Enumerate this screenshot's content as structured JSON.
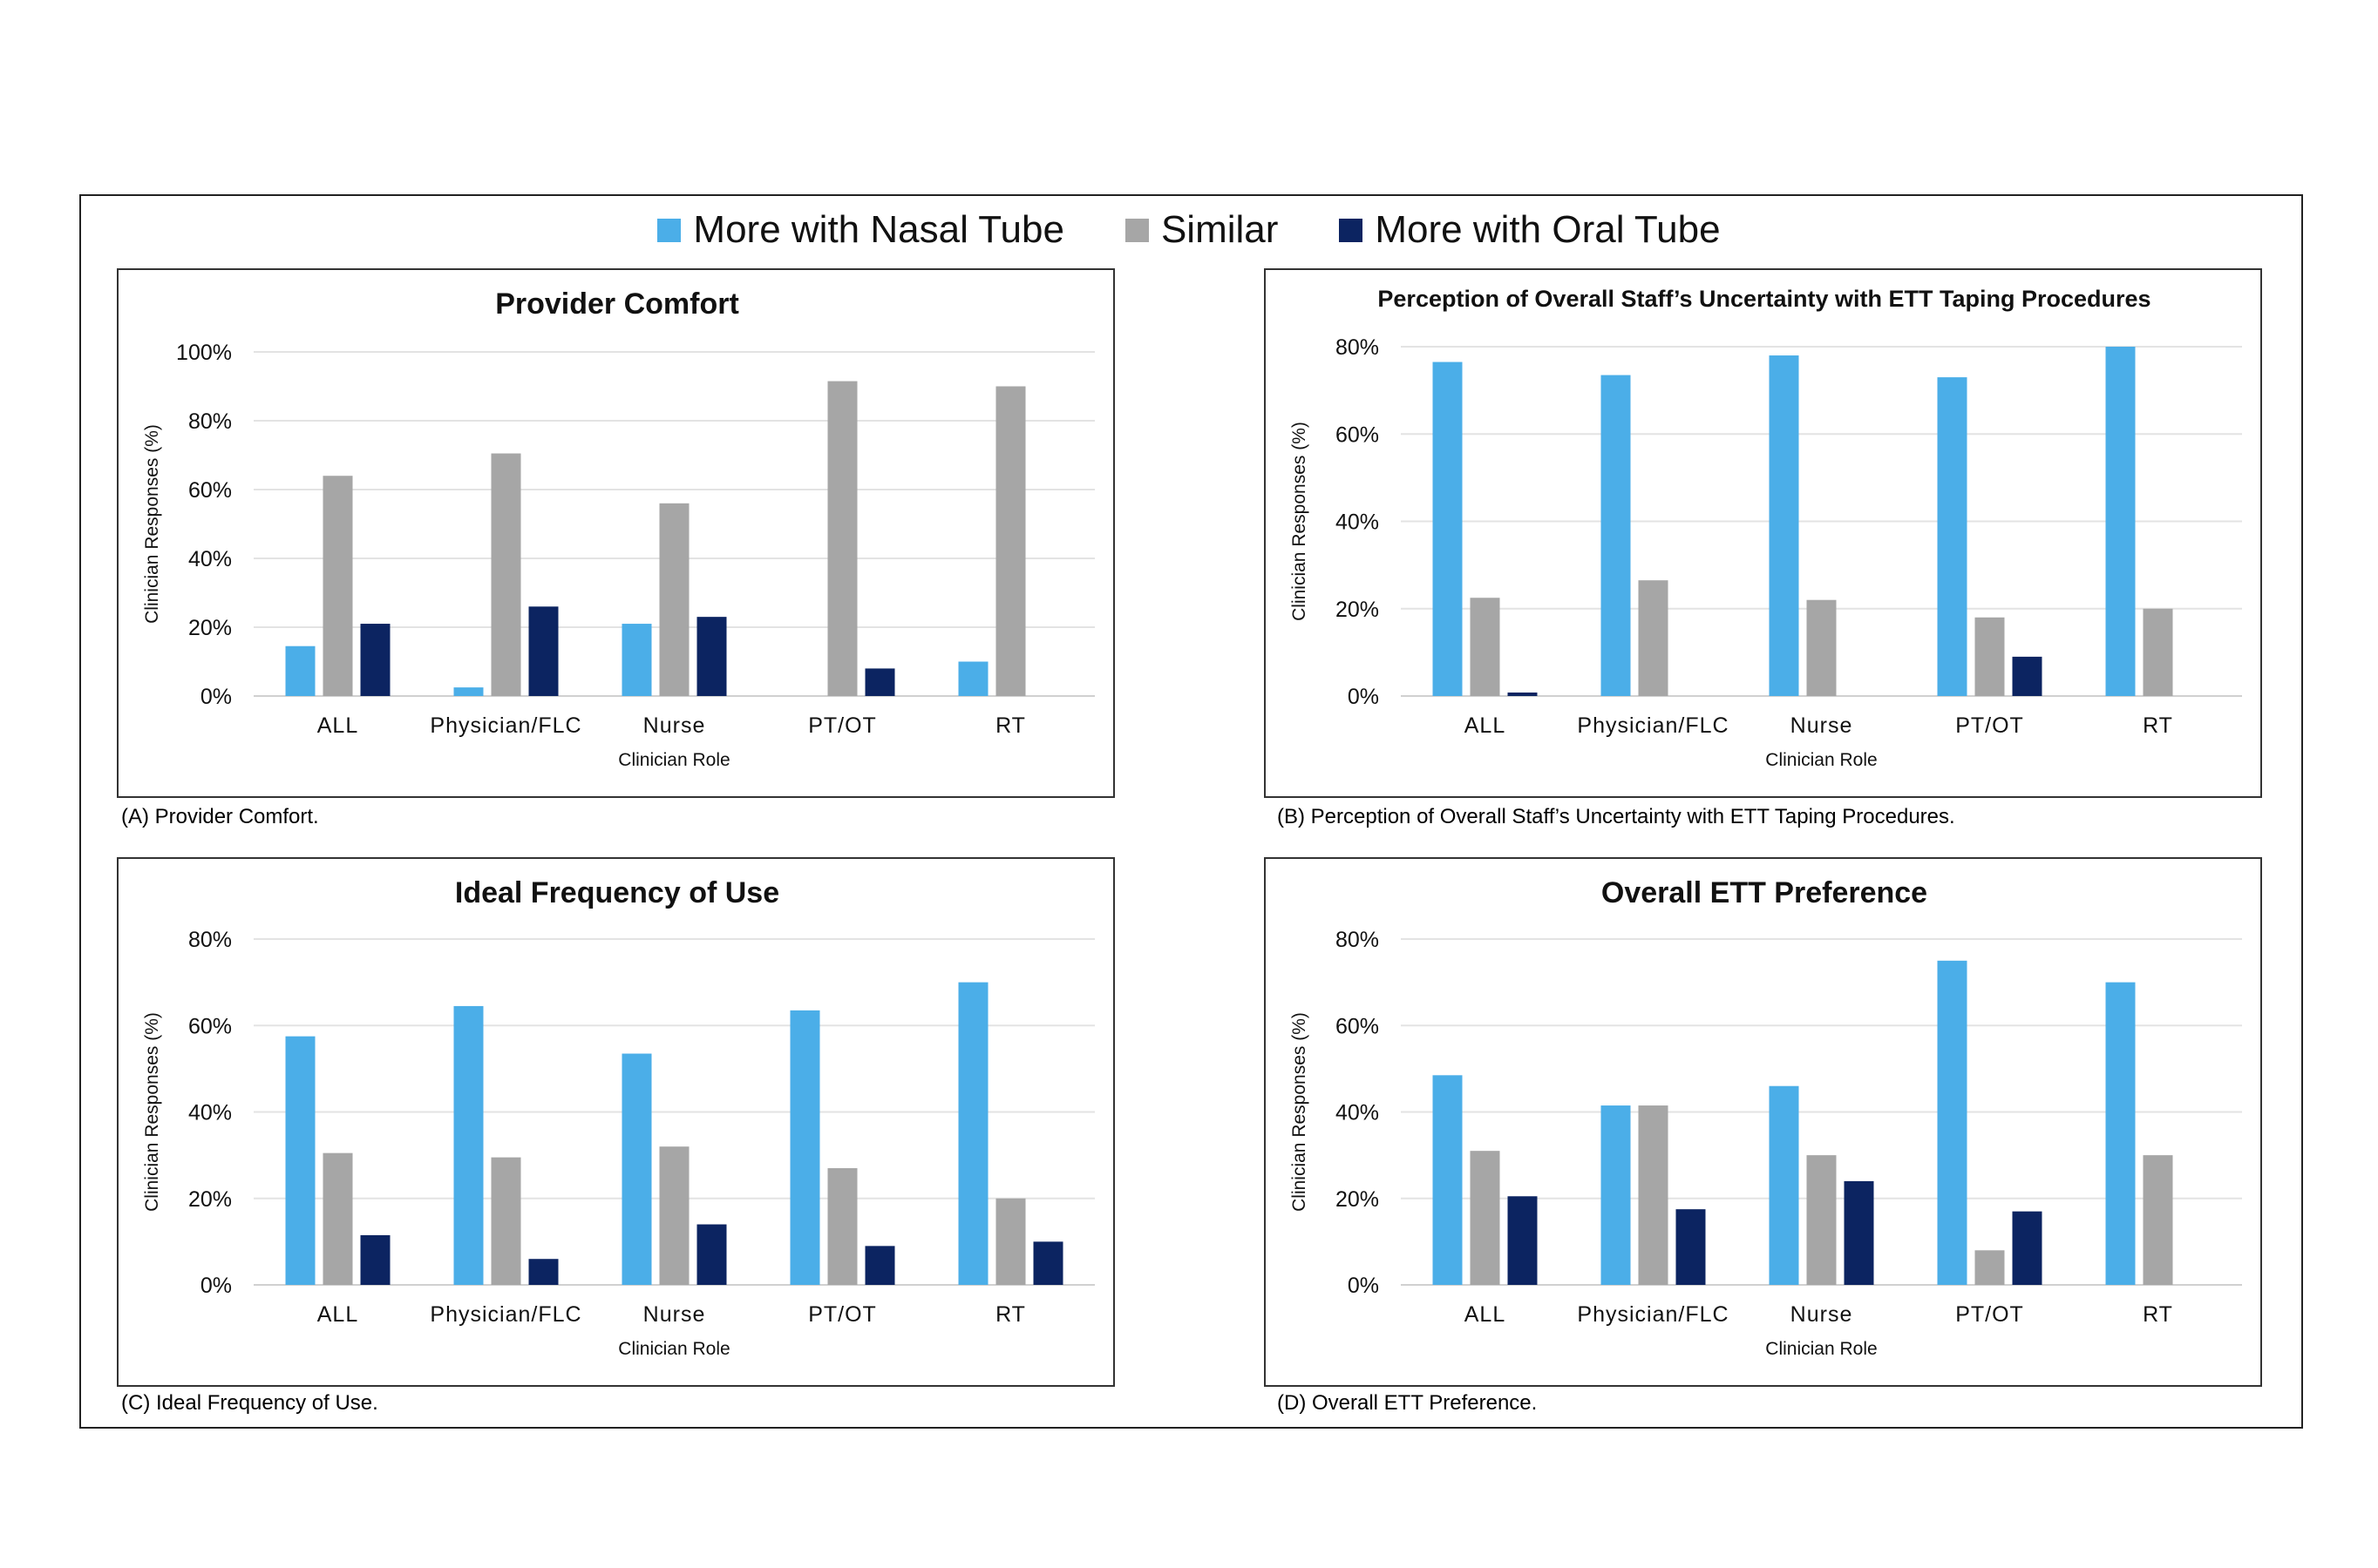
{
  "legend": {
    "items": [
      {
        "label": "More with Nasal Tube",
        "color": "#4baee8"
      },
      {
        "label": "Similar",
        "color": "#a6a6a6"
      },
      {
        "label": "More with Oral Tube",
        "color": "#0c2461"
      }
    ]
  },
  "chart_data": [
    {
      "type": "bar",
      "title": "Provider Comfort",
      "caption": "(A) Provider Comfort.",
      "xlabel": "Clinician Role",
      "ylabel": "Clinician Responses (%)",
      "ylim": [
        0,
        100
      ],
      "yticks": [
        "0%",
        "20%",
        "40%",
        "60%",
        "80%",
        "100%"
      ],
      "categories": [
        "ALL",
        "Physician/FLC",
        "Nurse",
        "PT/OT",
        "RT"
      ],
      "series": [
        {
          "name": "More with Nasal Tube",
          "values": [
            14.5,
            2.5,
            21,
            0,
            10
          ]
        },
        {
          "name": "Similar",
          "values": [
            64,
            70.5,
            56,
            91.5,
            90
          ]
        },
        {
          "name": "More with Oral Tube",
          "values": [
            21,
            26,
            23,
            8,
            0
          ]
        }
      ]
    },
    {
      "type": "bar",
      "title": "Perception of Overall Staff’s Uncertainty with ETT Taping Procedures",
      "caption": "(B) Perception of Overall Staff’s Uncertainty with ETT Taping Procedures.",
      "xlabel": "Clinician Role",
      "ylabel": "Clinician Responses (%)",
      "ylim": [
        0,
        80
      ],
      "yticks": [
        "0%",
        "20%",
        "40%",
        "60%",
        "80%"
      ],
      "categories": [
        "ALL",
        "Physician/FLC",
        "Nurse",
        "PT/OT",
        "RT"
      ],
      "series": [
        {
          "name": "More with Nasal Tube",
          "values": [
            76.5,
            73.5,
            78,
            73,
            80
          ]
        },
        {
          "name": "Similar",
          "values": [
            22.5,
            26.5,
            22,
            18,
            20
          ]
        },
        {
          "name": "More with Oral Tube",
          "values": [
            0.8,
            0,
            0,
            9,
            0
          ]
        }
      ]
    },
    {
      "type": "bar",
      "title": "Ideal Frequency of Use",
      "caption": "(C) Ideal Frequency of Use.",
      "xlabel": "Clinician Role",
      "ylabel": "Clinician Responses (%)",
      "ylim": [
        0,
        80
      ],
      "yticks": [
        "0%",
        "20%",
        "40%",
        "60%",
        "80%"
      ],
      "categories": [
        "ALL",
        "Physician/FLC",
        "Nurse",
        "PT/OT",
        "RT"
      ],
      "series": [
        {
          "name": "More with Nasal Tube",
          "values": [
            57.5,
            64.5,
            53.5,
            63.5,
            70
          ]
        },
        {
          "name": "Similar",
          "values": [
            30.5,
            29.5,
            32,
            27,
            20
          ]
        },
        {
          "name": "More with Oral Tube",
          "values": [
            11.5,
            6,
            14,
            9,
            10
          ]
        }
      ]
    },
    {
      "type": "bar",
      "title": "Overall ETT Preference",
      "caption": "(D) Overall ETT Preference.",
      "xlabel": "Clinician Role",
      "ylabel": "Clinician Responses (%)",
      "ylim": [
        0,
        80
      ],
      "yticks": [
        "0%",
        "20%",
        "40%",
        "60%",
        "80%"
      ],
      "categories": [
        "ALL",
        "Physician/FLC",
        "Nurse",
        "PT/OT",
        "RT"
      ],
      "series": [
        {
          "name": "More with Nasal Tube",
          "values": [
            48.5,
            41.5,
            46,
            75,
            70
          ]
        },
        {
          "name": "Similar",
          "values": [
            31,
            41.5,
            30,
            8,
            30
          ]
        },
        {
          "name": "More with Oral Tube",
          "values": [
            20.5,
            17.5,
            24,
            17,
            0
          ]
        }
      ]
    }
  ]
}
